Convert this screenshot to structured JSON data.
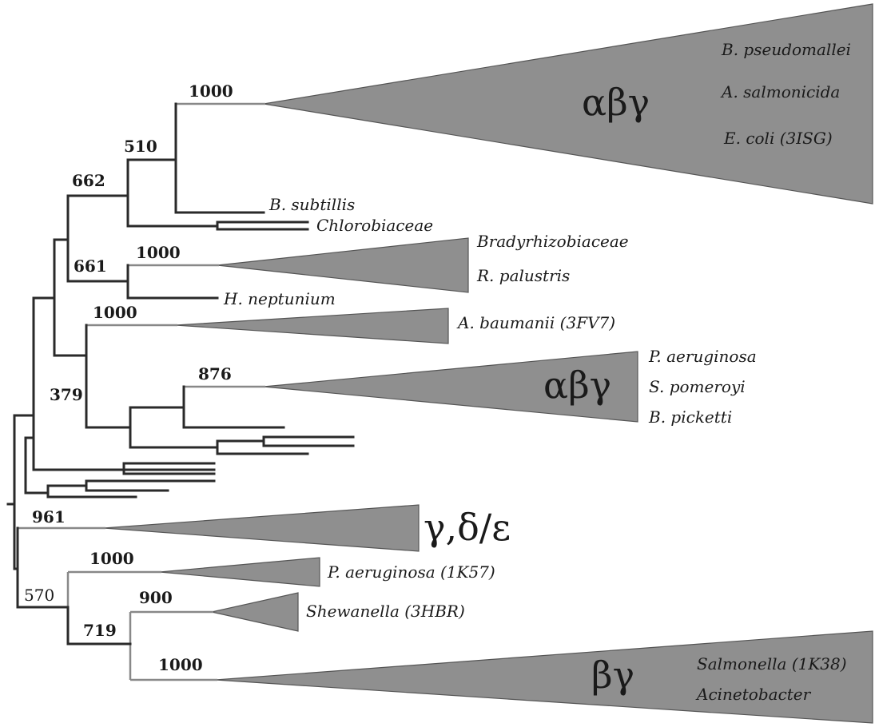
{
  "figure": "phylogenetic-tree",
  "bootstrap": {
    "n1000_top": "1000",
    "n510": "510",
    "n662": "662",
    "n1000_brady": "1000",
    "n661": "661",
    "n1000_abau": "1000",
    "n876": "876",
    "n379": "379",
    "n961": "961",
    "n1000_pae": "1000",
    "n570": "570",
    "n900": "900",
    "n719": "719",
    "n1000_salm": "1000"
  },
  "groups": {
    "g1": "αβγ",
    "g2": "αβγ",
    "g3": "γ,δ/ε",
    "g4": "βγ"
  },
  "taxa": {
    "t_bpseudo": "B. pseudomallei",
    "t_asalmon": "A. salmonicida",
    "t_ecoli": "E. coli (3ISG)",
    "t_bsubt": "B. subtillis",
    "t_chloro": "Chlorobiaceae",
    "t_brady": "Bradyrhizobiaceae",
    "t_rpal": "R. palustris",
    "t_hnep": "H. neptunium",
    "t_abau": "A. baumanii (3FV7)",
    "t_paer": "P. aeruginosa",
    "t_spom": "S. pomeroyi",
    "t_bpick": "B. picketti",
    "t_paer2": "P. aeruginosa (1K57)",
    "t_shew": "Shewanella (3HBR)",
    "t_salm": "Salmonella (1K38)",
    "t_acin": "Acinetobacter"
  }
}
